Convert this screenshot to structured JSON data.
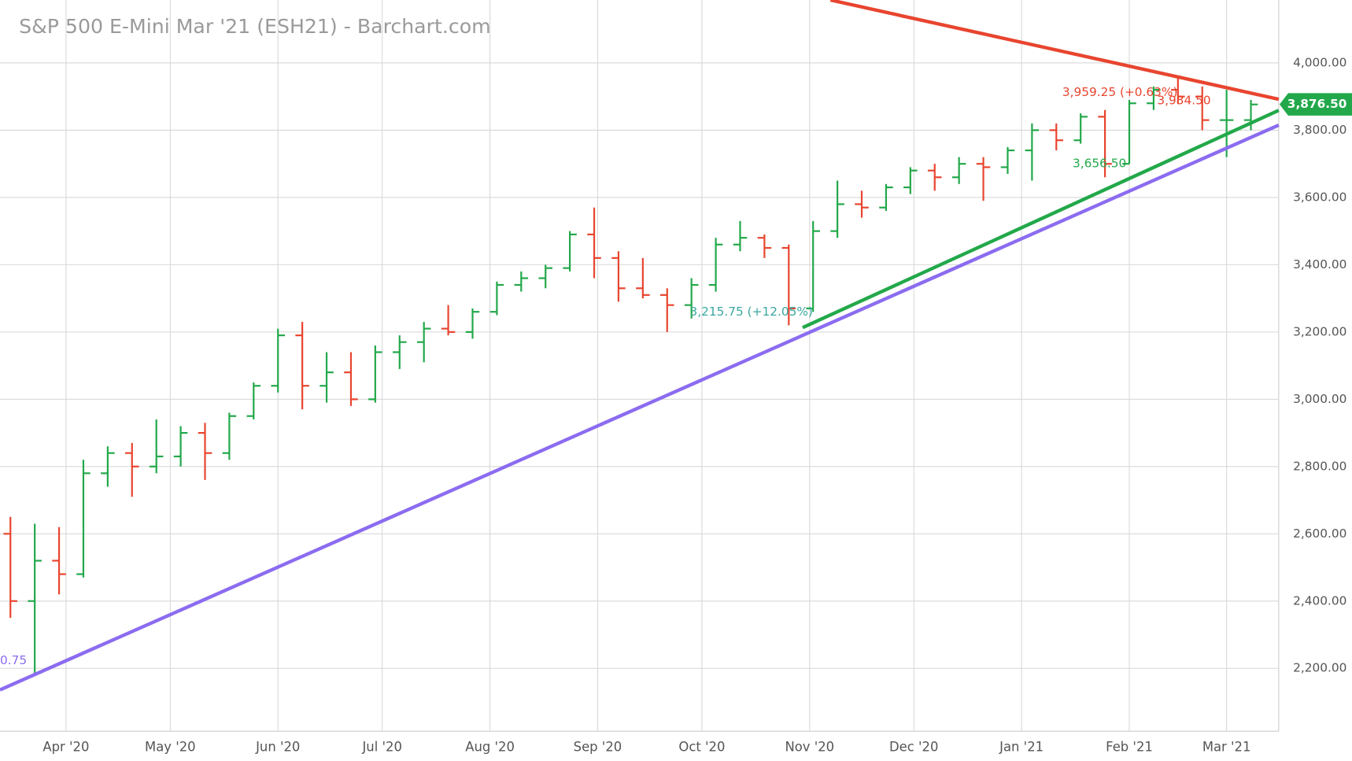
{
  "chart_data": {
    "type": "ohlc",
    "title": "S&P 500 E-Mini Mar '21 (ESH21) - Barchart.com",
    "x": [
      "2020-03-16",
      "2020-03-23",
      "2020-03-30",
      "2020-04-06",
      "2020-04-13",
      "2020-04-20",
      "2020-04-27",
      "2020-05-04",
      "2020-05-11",
      "2020-05-18",
      "2020-05-25",
      "2020-06-01",
      "2020-06-08",
      "2020-06-15",
      "2020-06-22",
      "2020-06-29",
      "2020-07-06",
      "2020-07-13",
      "2020-07-20",
      "2020-07-27",
      "2020-08-03",
      "2020-08-10",
      "2020-08-17",
      "2020-08-24",
      "2020-08-31",
      "2020-09-07",
      "2020-09-14",
      "2020-09-21",
      "2020-09-28",
      "2020-10-05",
      "2020-10-12",
      "2020-10-19",
      "2020-10-26",
      "2020-11-02",
      "2020-11-09",
      "2020-11-16",
      "2020-11-23",
      "2020-11-30",
      "2020-12-07",
      "2020-12-14",
      "2020-12-21",
      "2020-12-28",
      "2021-01-04",
      "2021-01-11",
      "2021-01-18",
      "2021-01-25",
      "2021-02-01",
      "2021-02-08",
      "2021-02-15",
      "2021-02-22",
      "2021-03-01",
      "2021-03-08"
    ],
    "open": [
      2600,
      2400,
      2520,
      2480,
      2780,
      2840,
      2800,
      2830,
      2900,
      2840,
      2950,
      3040,
      3190,
      3040,
      3080,
      3000,
      3140,
      3170,
      3210,
      3200,
      3260,
      3340,
      3360,
      3390,
      3490,
      3420,
      3330,
      3310,
      3280,
      3340,
      3460,
      3480,
      3450,
      3270,
      3500,
      3580,
      3570,
      3630,
      3680,
      3660,
      3700,
      3690,
      3740,
      3800,
      3770,
      3840,
      3700,
      3880,
      3920,
      3900,
      3830,
      3830
    ],
    "high": [
      2650,
      2630,
      2620,
      2820,
      2860,
      2870,
      2940,
      2920,
      2930,
      2960,
      3050,
      3210,
      3230,
      3140,
      3140,
      3160,
      3190,
      3230,
      3280,
      3270,
      3350,
      3380,
      3400,
      3500,
      3570,
      3440,
      3420,
      3330,
      3360,
      3480,
      3530,
      3490,
      3460,
      3530,
      3650,
      3620,
      3640,
      3690,
      3700,
      3720,
      3720,
      3750,
      3820,
      3820,
      3850,
      3860,
      3890,
      3930,
      3960,
      3930,
      3920,
      3890
    ],
    "low": [
      2350,
      2180,
      2420,
      2470,
      2740,
      2710,
      2780,
      2800,
      2760,
      2820,
      2940,
      3020,
      2970,
      2990,
      2980,
      2990,
      3090,
      3110,
      3190,
      3180,
      3250,
      3320,
      3330,
      3380,
      3360,
      3290,
      3300,
      3200,
      3240,
      3320,
      3440,
      3420,
      3220,
      3260,
      3480,
      3540,
      3560,
      3610,
      3620,
      3640,
      3590,
      3670,
      3650,
      3740,
      3760,
      3660,
      3700,
      3860,
      3880,
      3800,
      3720,
      3800
    ],
    "close": [
      2400,
      2520,
      2480,
      2780,
      2840,
      2800,
      2830,
      2900,
      2840,
      2950,
      3040,
      3190,
      3040,
      3080,
      3000,
      3140,
      3170,
      3210,
      3200,
      3260,
      3340,
      3360,
      3390,
      3490,
      3420,
      3330,
      3310,
      3280,
      3340,
      3460,
      3480,
      3450,
      3270,
      3500,
      3580,
      3570,
      3630,
      3680,
      3660,
      3700,
      3690,
      3740,
      3800,
      3770,
      3840,
      3700,
      3880,
      3920,
      3900,
      3830,
      3830,
      3876.5
    ],
    "up_color": "#22a84a",
    "down_color": "#e8452f",
    "xlim": [
      "2020-03-13",
      "2021-03-16"
    ],
    "xticks": [
      {
        "value": "2020-04-01",
        "label": "Apr '20"
      },
      {
        "value": "2020-05-01",
        "label": "May '20"
      },
      {
        "value": "2020-06-01",
        "label": "Jun '20"
      },
      {
        "value": "2020-07-01",
        "label": "Jul '20"
      },
      {
        "value": "2020-08-01",
        "label": "Aug '20"
      },
      {
        "value": "2020-09-01",
        "label": "Sep '20"
      },
      {
        "value": "2020-10-01",
        "label": "Oct '20"
      },
      {
        "value": "2020-11-01",
        "label": "Nov '20"
      },
      {
        "value": "2020-12-01",
        "label": "Dec '20"
      },
      {
        "value": "2021-01-01",
        "label": "Jan '21"
      },
      {
        "value": "2021-02-01",
        "label": "Feb '21"
      },
      {
        "value": "2021-03-01",
        "label": "Mar '21"
      }
    ],
    "ylim": [
      2013,
      4187
    ],
    "yticks": [
      {
        "value": 2200,
        "label": "2,200.00"
      },
      {
        "value": 2400,
        "label": "2,400.00"
      },
      {
        "value": 2600,
        "label": "2,600.00"
      },
      {
        "value": 2800,
        "label": "2,800.00"
      },
      {
        "value": 3000,
        "label": "3,000.00"
      },
      {
        "value": 3200,
        "label": "3,200.00"
      },
      {
        "value": 3400,
        "label": "3,400.00"
      },
      {
        "value": 3600,
        "label": "3,600.00"
      },
      {
        "value": 3800,
        "label": "3,800.00"
      },
      {
        "value": 4000,
        "label": "4,000.00"
      }
    ],
    "grid": true,
    "trendlines": [
      {
        "color": "#e8452f",
        "x": [
          "2020-11-07",
          "2021-03-16"
        ],
        "y": [
          4187,
          3892
        ]
      },
      {
        "color": "#22a84a",
        "x": [
          "2020-10-30",
          "2021-03-16"
        ],
        "y": [
          3213,
          3859
        ]
      },
      {
        "color": "#8b6cf0",
        "x": [
          "2020-03-13",
          "2021-03-16"
        ],
        "y": [
          2136,
          3815
        ]
      }
    ],
    "annotations": [
      "3,959.25 (+0.63%)",
      "3,934.50",
      "3,656.50",
      "3,215.75 (+12.05%)",
      "0.75"
    ],
    "last_label": "3,876.50"
  }
}
